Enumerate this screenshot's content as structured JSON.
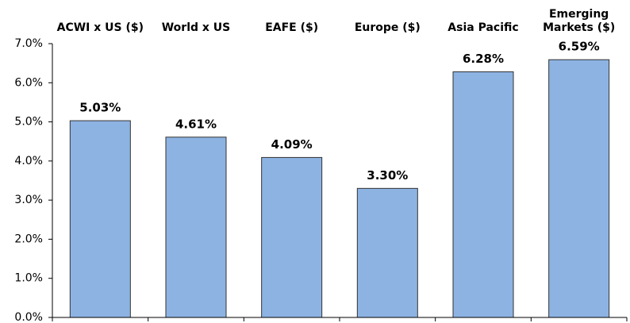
{
  "chart_data": {
    "type": "bar",
    "categories": [
      "ACWI x US ($)",
      "World x US",
      "EAFE ($)",
      "Europe ($)",
      "Asia Pacific",
      "Emerging Markets ($)"
    ],
    "values": [
      5.03,
      4.61,
      4.09,
      3.3,
      6.28,
      6.59
    ],
    "value_labels": [
      "5.03%",
      "4.61%",
      "4.09%",
      "3.30%",
      "6.28%",
      "6.59%"
    ],
    "color": "#8db3e2",
    "ylim": [
      0,
      7
    ],
    "yticks": [
      {
        "value": 0,
        "label": "0.0%"
      },
      {
        "value": 1,
        "label": "1.0%"
      },
      {
        "value": 2,
        "label": "2.0%"
      },
      {
        "value": 3,
        "label": "3.0%"
      },
      {
        "value": 4,
        "label": "4.0%"
      },
      {
        "value": 5,
        "label": "5.0%"
      },
      {
        "value": 6,
        "label": "6.0%"
      },
      {
        "value": 7,
        "label": "7.0%"
      }
    ],
    "grid": false
  }
}
